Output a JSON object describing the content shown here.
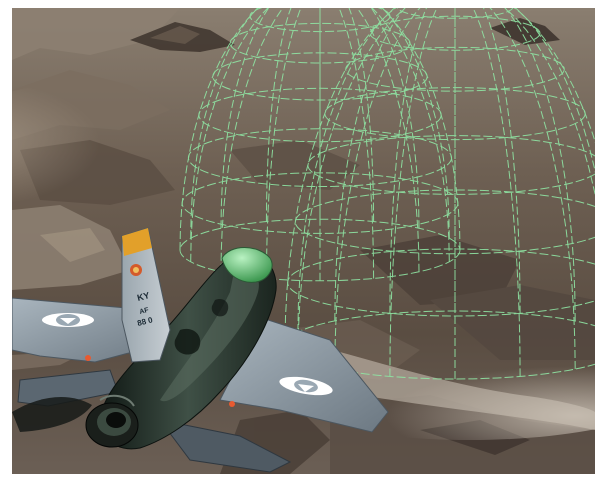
{
  "scene": {
    "type": "flight-simulator-render",
    "colors": {
      "frame": "#ffffff",
      "terrain_dark": "#4c4038",
      "terrain_mid": "#7a6a5c",
      "terrain_light": "#a59787",
      "haze": "#c8bfb2",
      "radar_wireframe": "#8fe6a4",
      "fuselage_dark": "#1c2620",
      "fuselage_mid": "#3e4e44",
      "wing": "#8a98a4",
      "canopy": "#6ed07e",
      "tail_stripe": "#e2a02a",
      "roundel": "#ffffff",
      "warning_light": "#e85a30"
    },
    "objects": [
      "desert-mountain-terrain",
      "radar-coverage-dome-1",
      "radar-coverage-dome-2",
      "fighter-jet"
    ],
    "aircraft": {
      "tail_markings": [
        "KY",
        "AF",
        "88 0"
      ],
      "roundel_count": 2
    }
  }
}
